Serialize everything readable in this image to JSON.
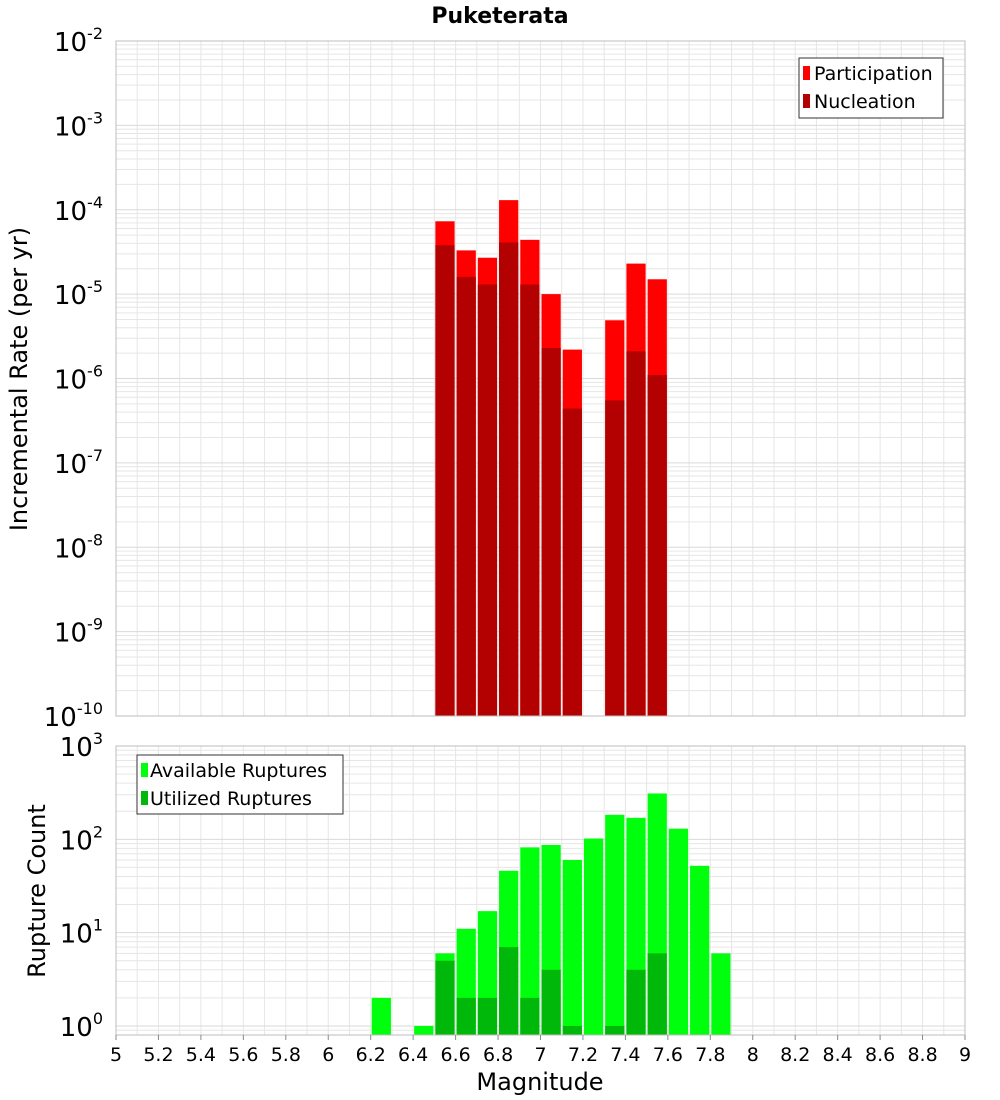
{
  "figure": {
    "title": "Puketerata",
    "xlabel": "Magnitude"
  },
  "colors": {
    "participation": "#ff0000",
    "nucleation": "#b30000",
    "available": "#00ff0c",
    "utilized": "#00b80a",
    "grid": "#e6e6e6",
    "frame": "#bdbdbd"
  },
  "chart_data": [
    {
      "type": "bar",
      "title": "Puketerata",
      "xlabel": "Magnitude",
      "ylabel": "Incremental Rate (per yr)",
      "yscale": "log",
      "xlim": [
        5,
        9
      ],
      "ylim": [
        1e-10,
        0.01
      ],
      "grid": true,
      "legend_position": "top-right",
      "bar_width": 0.1,
      "ytick_exponents": [
        "-10",
        "-9",
        "-8",
        "-7",
        "-6",
        "-5",
        "-4",
        "-3",
        "-2"
      ],
      "ytick_base": "10",
      "series": [
        {
          "name": "Participation",
          "x": [
            6.55,
            6.65,
            6.75,
            6.85,
            6.95,
            7.05,
            7.15,
            7.35,
            7.45,
            7.55
          ],
          "values": [
            7.3e-05,
            3.3e-05,
            2.7e-05,
            0.00013,
            4.4e-05,
            1e-05,
            2.2e-06,
            4.9e-06,
            2.3e-05,
            1.5e-05
          ]
        },
        {
          "name": "Nucleation",
          "x": [
            6.55,
            6.65,
            6.75,
            6.85,
            6.95,
            7.05,
            7.15,
            7.35,
            7.45,
            7.55
          ],
          "values": [
            3.8e-05,
            1.6e-05,
            1.3e-05,
            4.1e-05,
            1.3e-05,
            2.3e-06,
            4.4e-07,
            5.5e-07,
            2.1e-06,
            1.1e-06
          ]
        }
      ]
    },
    {
      "type": "bar",
      "xlabel": "Magnitude",
      "ylabel": "Rupture Count",
      "yscale": "log",
      "xlim": [
        5,
        9
      ],
      "ylim": [
        0.8,
        1000
      ],
      "grid": true,
      "legend_position": "top-left",
      "bar_width": 0.1,
      "xticks": [
        "5",
        "5.2",
        "5.4",
        "5.6",
        "5.8",
        "6",
        "6.2",
        "6.4",
        "6.6",
        "6.8",
        "7",
        "7.2",
        "7.4",
        "7.6",
        "7.8",
        "8",
        "8.2",
        "8.4",
        "8.6",
        "8.8",
        "9"
      ],
      "ytick_exponents": [
        "0",
        "1",
        "2",
        "3"
      ],
      "ytick_base": "10",
      "series": [
        {
          "name": "Available Ruptures",
          "x": [
            6.25,
            6.45,
            6.55,
            6.65,
            6.75,
            6.85,
            6.95,
            7.05,
            7.15,
            7.25,
            7.35,
            7.45,
            7.55,
            7.65,
            7.75,
            7.85
          ],
          "values": [
            2,
            1,
            6,
            11,
            17,
            46,
            82,
            87,
            60,
            102,
            183,
            170,
            310,
            130,
            52,
            6
          ]
        },
        {
          "name": "Utilized Ruptures",
          "x": [
            6.55,
            6.65,
            6.75,
            6.85,
            6.95,
            7.05,
            7.15,
            7.35,
            7.45,
            7.55
          ],
          "values": [
            5,
            2,
            2,
            7,
            2,
            4,
            1,
            1,
            4,
            6
          ]
        }
      ]
    }
  ]
}
